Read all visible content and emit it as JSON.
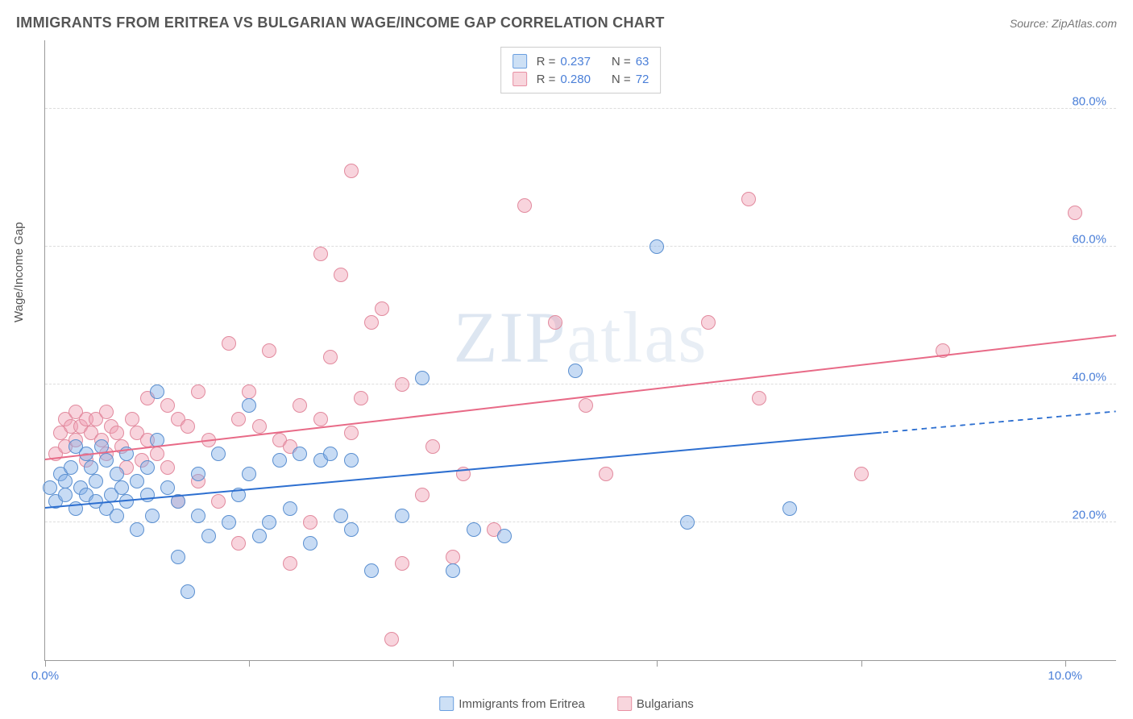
{
  "header": {
    "title": "IMMIGRANTS FROM ERITREA VS BULGARIAN WAGE/INCOME GAP CORRELATION CHART",
    "source": "Source: ZipAtlas.com"
  },
  "watermark": {
    "prefix": "ZIP",
    "suffix": "atlas"
  },
  "y_axis": {
    "label": "Wage/Income Gap",
    "min": 0,
    "max": 90,
    "ticks": [
      20,
      40,
      60,
      80
    ],
    "tick_labels": [
      "20.0%",
      "40.0%",
      "60.0%",
      "80.0%"
    ]
  },
  "x_axis": {
    "min": 0,
    "max": 10.5,
    "ticks": [
      0,
      2,
      4,
      6,
      8,
      10
    ],
    "edge_labels": {
      "left": "0.0%",
      "right": "10.0%"
    }
  },
  "legend_top": {
    "rows": [
      {
        "swatch_fill": "#cde0f5",
        "swatch_border": "#6a9fe0",
        "r_label": "R  =",
        "r_val": "0.237",
        "n_label": "N  =",
        "n_val": "63"
      },
      {
        "swatch_fill": "#f8d6dd",
        "swatch_border": "#e890a3",
        "r_label": "R  =",
        "r_val": "0.280",
        "n_label": "N  =",
        "n_val": "72"
      }
    ]
  },
  "legend_bottom": {
    "items": [
      {
        "swatch_fill": "#cde0f5",
        "swatch_border": "#6a9fe0",
        "label": "Immigrants from Eritrea"
      },
      {
        "swatch_fill": "#f8d6dd",
        "swatch_border": "#e890a3",
        "label": "Bulgarians"
      }
    ]
  },
  "series": {
    "blue": {
      "fill": "rgba(130,175,230,0.45)",
      "stroke": "#5a8fd0",
      "size": 18,
      "trend": {
        "color": "#2d6fd0",
        "y_at_xmin": 22,
        "y_at_xmax": 36,
        "solid_until_x": 8.2
      },
      "points": [
        [
          0.05,
          25
        ],
        [
          0.1,
          23
        ],
        [
          0.15,
          27
        ],
        [
          0.2,
          24
        ],
        [
          0.2,
          26
        ],
        [
          0.25,
          28
        ],
        [
          0.3,
          22
        ],
        [
          0.3,
          31
        ],
        [
          0.35,
          25
        ],
        [
          0.4,
          30
        ],
        [
          0.4,
          24
        ],
        [
          0.45,
          28
        ],
        [
          0.5,
          23
        ],
        [
          0.5,
          26
        ],
        [
          0.55,
          31
        ],
        [
          0.6,
          22
        ],
        [
          0.6,
          29
        ],
        [
          0.65,
          24
        ],
        [
          0.7,
          27
        ],
        [
          0.7,
          21
        ],
        [
          0.75,
          25
        ],
        [
          0.8,
          30
        ],
        [
          0.8,
          23
        ],
        [
          0.9,
          26
        ],
        [
          0.9,
          19
        ],
        [
          1.0,
          28
        ],
        [
          1.0,
          24
        ],
        [
          1.05,
          21
        ],
        [
          1.1,
          32
        ],
        [
          1.1,
          39
        ],
        [
          1.2,
          25
        ],
        [
          1.3,
          23
        ],
        [
          1.3,
          15
        ],
        [
          1.4,
          10
        ],
        [
          1.5,
          21
        ],
        [
          1.5,
          27
        ],
        [
          1.6,
          18
        ],
        [
          1.7,
          30
        ],
        [
          1.8,
          20
        ],
        [
          1.9,
          24
        ],
        [
          2.0,
          37
        ],
        [
          2.0,
          27
        ],
        [
          2.1,
          18
        ],
        [
          2.2,
          20
        ],
        [
          2.3,
          29
        ],
        [
          2.4,
          22
        ],
        [
          2.5,
          30
        ],
        [
          2.6,
          17
        ],
        [
          2.7,
          29
        ],
        [
          2.8,
          30
        ],
        [
          2.9,
          21
        ],
        [
          3.0,
          29
        ],
        [
          3.0,
          19
        ],
        [
          3.2,
          13
        ],
        [
          3.5,
          21
        ],
        [
          3.7,
          41
        ],
        [
          4.0,
          13
        ],
        [
          4.2,
          19
        ],
        [
          4.5,
          18
        ],
        [
          5.2,
          42
        ],
        [
          6.0,
          60
        ],
        [
          7.3,
          22
        ],
        [
          6.3,
          20
        ]
      ]
    },
    "pink": {
      "fill": "rgba(240,160,180,0.45)",
      "stroke": "#e28a9e",
      "size": 18,
      "trend": {
        "color": "#e86a87",
        "y_at_xmin": 29,
        "y_at_xmax": 47,
        "solid_until_x": 10.5
      },
      "points": [
        [
          0.1,
          30
        ],
        [
          0.15,
          33
        ],
        [
          0.2,
          35
        ],
        [
          0.2,
          31
        ],
        [
          0.25,
          34
        ],
        [
          0.3,
          36
        ],
        [
          0.3,
          32
        ],
        [
          0.35,
          34
        ],
        [
          0.4,
          35
        ],
        [
          0.4,
          29
        ],
        [
          0.45,
          33
        ],
        [
          0.5,
          35
        ],
        [
          0.55,
          32
        ],
        [
          0.6,
          36
        ],
        [
          0.6,
          30
        ],
        [
          0.65,
          34
        ],
        [
          0.7,
          33
        ],
        [
          0.75,
          31
        ],
        [
          0.8,
          28
        ],
        [
          0.85,
          35
        ],
        [
          0.9,
          33
        ],
        [
          0.95,
          29
        ],
        [
          1.0,
          38
        ],
        [
          1.0,
          32
        ],
        [
          1.1,
          30
        ],
        [
          1.2,
          28
        ],
        [
          1.2,
          37
        ],
        [
          1.3,
          35
        ],
        [
          1.4,
          34
        ],
        [
          1.5,
          26
        ],
        [
          1.5,
          39
        ],
        [
          1.6,
          32
        ],
        [
          1.7,
          23
        ],
        [
          1.8,
          46
        ],
        [
          1.9,
          35
        ],
        [
          1.9,
          17
        ],
        [
          2.0,
          39
        ],
        [
          2.1,
          34
        ],
        [
          2.2,
          45
        ],
        [
          2.3,
          32
        ],
        [
          2.4,
          31
        ],
        [
          2.5,
          37
        ],
        [
          2.6,
          20
        ],
        [
          2.7,
          59
        ],
        [
          2.7,
          35
        ],
        [
          2.8,
          44
        ],
        [
          2.9,
          56
        ],
        [
          3.0,
          33
        ],
        [
          3.0,
          71
        ],
        [
          3.1,
          38
        ],
        [
          3.2,
          49
        ],
        [
          3.3,
          51
        ],
        [
          3.4,
          3
        ],
        [
          3.5,
          40
        ],
        [
          3.5,
          14
        ],
        [
          3.7,
          24
        ],
        [
          3.8,
          31
        ],
        [
          4.0,
          15
        ],
        [
          4.1,
          27
        ],
        [
          4.4,
          19
        ],
        [
          4.7,
          66
        ],
        [
          5.0,
          49
        ],
        [
          5.3,
          37
        ],
        [
          5.5,
          27
        ],
        [
          6.5,
          49
        ],
        [
          6.9,
          67
        ],
        [
          7.0,
          38
        ],
        [
          8.0,
          27
        ],
        [
          8.8,
          45
        ],
        [
          10.1,
          65
        ],
        [
          2.4,
          14
        ],
        [
          1.3,
          23
        ]
      ]
    }
  },
  "styles": {
    "grid_color": "#dddddd",
    "axis_color": "#999999",
    "label_color": "#555555",
    "tick_value_color": "#4a7fd8"
  }
}
